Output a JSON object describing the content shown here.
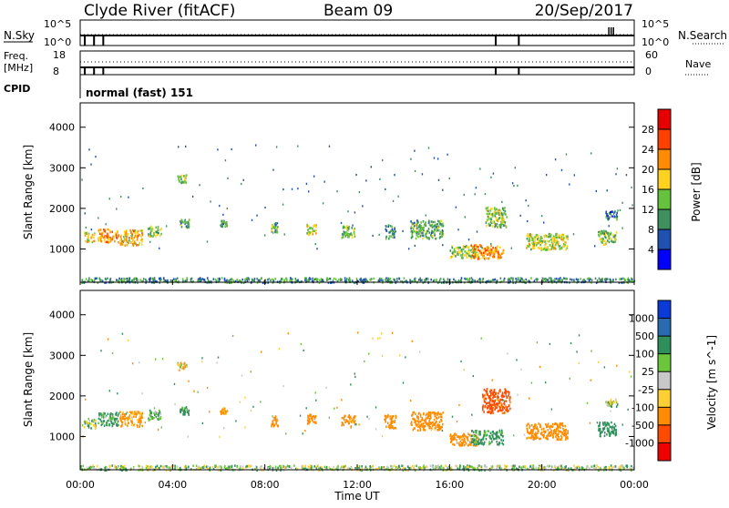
{
  "header": {
    "station": "Clyde River (fitACF)",
    "beam": "Beam 09",
    "date": "20/Sep/2017"
  },
  "top_panels": {
    "nsky_label": "N.Sky",
    "nsearch_label": "N.Search",
    "freq_label": "Freq.",
    "freq_unit": "[MHz]",
    "nave_label": "Nave",
    "cpid_label": "CPID",
    "cpid_value": "normal (fast) 151",
    "noise_ticks_left": [
      "10^5",
      "10^0"
    ],
    "noise_ticks_right": [
      "10^5",
      "10^0"
    ],
    "freq_ticks_left": [
      "18",
      "8"
    ],
    "nave_ticks_right": [
      "60",
      "0"
    ]
  },
  "axes": {
    "xlabel": "Time UT",
    "ylabel": "Slant Range [km]",
    "x_ticks": [
      "00:00",
      "04:00",
      "08:00",
      "12:00",
      "16:00",
      "20:00",
      "00:00"
    ],
    "y_ticks": [
      "1000",
      "2000",
      "3000",
      "4000"
    ]
  },
  "power_scale": {
    "label": "Power [dB]",
    "ticks": [
      "4",
      "8",
      "12",
      "16",
      "20",
      "24",
      "28"
    ],
    "colors": [
      "#0000ff",
      "#2050b0",
      "#3f8f5f",
      "#66c23c",
      "#ffd21f",
      "#ff8c00",
      "#ff4000",
      "#e60000"
    ]
  },
  "velocity_scale": {
    "label": "Velocity [m s^-1]",
    "ticks": [
      "1000",
      "500",
      "100",
      "25",
      "-25",
      "-100",
      "-500",
      "-1000"
    ],
    "colors": [
      "#0a3bd6",
      "#2a6ab0",
      "#2f8f5a",
      "#6cc63b",
      "#c8c8c8",
      "#ffcf33",
      "#ff8c00",
      "#ff4a00",
      "#ee0000"
    ]
  },
  "chart_data": [
    {
      "type": "heatmap",
      "title": "Power",
      "xlabel": "Time UT",
      "ylabel": "Slant Range [km]",
      "xlim": [
        0,
        24
      ],
      "ylim": [
        180,
        4600
      ],
      "colorbar": {
        "label": "Power [dB]",
        "range": [
          0,
          32
        ]
      },
      "patches": [
        {
          "t": 0.4,
          "r": 1300,
          "dt": 0.5,
          "dr": 250,
          "v": 18
        },
        {
          "t": 1.2,
          "r": 1350,
          "dt": 0.9,
          "dr": 330,
          "v": 22
        },
        {
          "t": 2.2,
          "r": 1300,
          "dt": 1.0,
          "dr": 380,
          "v": 20
        },
        {
          "t": 3.2,
          "r": 1450,
          "dt": 0.6,
          "dr": 260,
          "v": 14
        },
        {
          "t": 4.4,
          "r": 2750,
          "dt": 0.4,
          "dr": 200,
          "v": 14
        },
        {
          "t": 4.5,
          "r": 1650,
          "dt": 0.4,
          "dr": 200,
          "v": 12
        },
        {
          "t": 6.2,
          "r": 1650,
          "dt": 0.3,
          "dr": 150,
          "v": 12
        },
        {
          "t": 8.4,
          "r": 1550,
          "dt": 0.3,
          "dr": 250,
          "v": 12
        },
        {
          "t": 10.0,
          "r": 1500,
          "dt": 0.4,
          "dr": 250,
          "v": 16
        },
        {
          "t": 11.6,
          "r": 1450,
          "dt": 0.6,
          "dr": 300,
          "v": 14
        },
        {
          "t": 13.4,
          "r": 1450,
          "dt": 0.4,
          "dr": 350,
          "v": 10
        },
        {
          "t": 15.0,
          "r": 1500,
          "dt": 1.4,
          "dr": 450,
          "v": 12
        },
        {
          "t": 16.6,
          "r": 950,
          "dt": 1.2,
          "dr": 300,
          "v": 14
        },
        {
          "t": 17.6,
          "r": 950,
          "dt": 1.4,
          "dr": 350,
          "v": 22
        },
        {
          "t": 18.0,
          "r": 1800,
          "dt": 0.9,
          "dr": 500,
          "v": 14
        },
        {
          "t": 20.2,
          "r": 1200,
          "dt": 1.8,
          "dr": 400,
          "v": 16
        },
        {
          "t": 22.8,
          "r": 1300,
          "dt": 0.8,
          "dr": 350,
          "v": 14
        },
        {
          "t": 23.0,
          "r": 1850,
          "dt": 0.5,
          "dr": 200,
          "v": 8
        },
        {
          "t": 12.0,
          "r": 250,
          "dt": 24.0,
          "dr": 120,
          "v": 10
        }
      ]
    },
    {
      "type": "heatmap",
      "title": "Velocity",
      "xlabel": "Time UT",
      "ylabel": "Slant Range [km]",
      "xlim": [
        0,
        24
      ],
      "ylim": [
        180,
        4600
      ],
      "colorbar": {
        "label": "Velocity [m s^-1]",
        "range": [
          -1000,
          1000
        ]
      },
      "patches": [
        {
          "t": 0.4,
          "r": 1350,
          "dt": 0.5,
          "dr": 250,
          "v": 50
        },
        {
          "t": 1.2,
          "r": 1450,
          "dt": 0.9,
          "dr": 330,
          "v": 150
        },
        {
          "t": 2.2,
          "r": 1450,
          "dt": 1.0,
          "dr": 380,
          "v": -150
        },
        {
          "t": 3.2,
          "r": 1550,
          "dt": 0.6,
          "dr": 260,
          "v": 120
        },
        {
          "t": 4.4,
          "r": 2750,
          "dt": 0.4,
          "dr": 200,
          "v": -60
        },
        {
          "t": 4.5,
          "r": 1650,
          "dt": 0.4,
          "dr": 200,
          "v": 200
        },
        {
          "t": 6.2,
          "r": 1650,
          "dt": 0.3,
          "dr": 150,
          "v": -150
        },
        {
          "t": 8.4,
          "r": 1400,
          "dt": 0.3,
          "dr": 250,
          "v": -300
        },
        {
          "t": 10.0,
          "r": 1450,
          "dt": 0.4,
          "dr": 250,
          "v": -300
        },
        {
          "t": 11.6,
          "r": 1400,
          "dt": 0.6,
          "dr": 300,
          "v": -200
        },
        {
          "t": 13.4,
          "r": 1400,
          "dt": 0.5,
          "dr": 350,
          "v": -300
        },
        {
          "t": 15.0,
          "r": 1400,
          "dt": 1.4,
          "dr": 450,
          "v": -300
        },
        {
          "t": 16.6,
          "r": 950,
          "dt": 1.2,
          "dr": 300,
          "v": -300
        },
        {
          "t": 17.6,
          "r": 1000,
          "dt": 1.4,
          "dr": 350,
          "v": 150
        },
        {
          "t": 18.0,
          "r": 1900,
          "dt": 1.2,
          "dr": 600,
          "v": -600
        },
        {
          "t": 20.2,
          "r": 1150,
          "dt": 1.8,
          "dr": 400,
          "v": -300
        },
        {
          "t": 22.8,
          "r": 1200,
          "dt": 0.8,
          "dr": 350,
          "v": 300
        },
        {
          "t": 23.0,
          "r": 1850,
          "dt": 0.5,
          "dr": 200,
          "v": 50
        },
        {
          "t": 12.0,
          "r": 250,
          "dt": 24.0,
          "dr": 120,
          "v": 40
        }
      ]
    }
  ]
}
